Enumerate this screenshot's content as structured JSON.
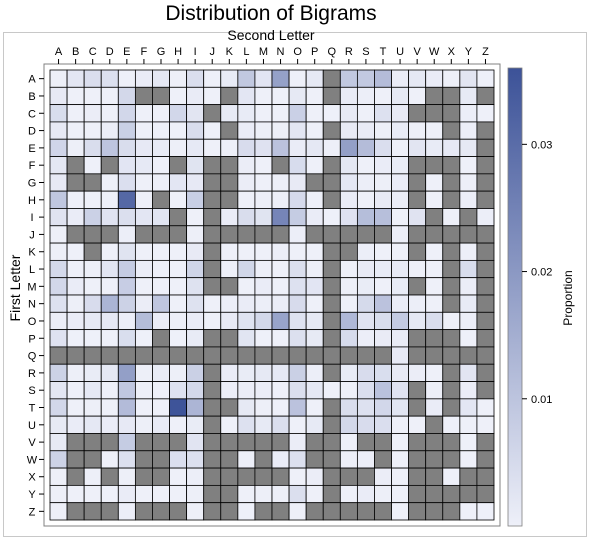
{
  "chart_data": {
    "type": "heatmap",
    "title": "Distribution of Bigrams",
    "xlabel": "Second Letter",
    "ylabel": "First Letter",
    "colorbar": {
      "label": "Proportion",
      "ticks": [
        0.01,
        0.02,
        0.03
      ],
      "range": [
        0,
        0.036
      ],
      "color_low": "#eef0f9",
      "color_high": "#3c5298"
    },
    "missing_color": "#808080",
    "x_categories": [
      "A",
      "B",
      "C",
      "D",
      "E",
      "F",
      "G",
      "H",
      "I",
      "J",
      "K",
      "L",
      "M",
      "N",
      "O",
      "P",
      "Q",
      "R",
      "S",
      "T",
      "U",
      "V",
      "W",
      "X",
      "Y",
      "Z"
    ],
    "y_categories": [
      "A",
      "B",
      "C",
      "D",
      "E",
      "F",
      "G",
      "H",
      "I",
      "J",
      "K",
      "L",
      "M",
      "N",
      "O",
      "P",
      "Q",
      "R",
      "S",
      "T",
      "U",
      "V",
      "W",
      "X",
      "Y",
      "Z"
    ],
    "values": [
      [
        0.0002,
        0.0023,
        0.004,
        0.0036,
        0.0001,
        0.0008,
        0.0018,
        0.0002,
        0.004,
        0.0001,
        0.0012,
        0.0091,
        0.0024,
        0.0181,
        0.0001,
        0.0016,
        null,
        0.0092,
        0.0088,
        0.0118,
        0.0009,
        0.0018,
        0.0008,
        0.0002,
        0.0025,
        0.0001
      ],
      [
        0.0015,
        0.0001,
        0.0001,
        0.0001,
        0.0055,
        null,
        null,
        0.0001,
        0.0011,
        0.0001,
        null,
        0.0023,
        0.0001,
        0.0001,
        0.0017,
        0.0001,
        null,
        0.0011,
        0.0004,
        0.0001,
        0.0017,
        0.0001,
        null,
        null,
        0.0014,
        null
      ],
      [
        0.0044,
        0.0001,
        0.0006,
        0.0001,
        0.0056,
        0.0001,
        0.0001,
        0.0056,
        0.0025,
        null,
        0.0014,
        0.0012,
        0.0001,
        0.0001,
        0.0072,
        0.0001,
        0.0001,
        0.0013,
        0.0001,
        0.0035,
        0.0013,
        null,
        null,
        null,
        0.0004,
        0.0001
      ],
      [
        0.0015,
        0.0001,
        0.0001,
        0.0006,
        0.0074,
        0.0001,
        0.0003,
        0.0001,
        0.0043,
        0.0001,
        null,
        0.0008,
        0.0002,
        0.0002,
        0.0022,
        0.0001,
        null,
        0.0013,
        0.0011,
        0.0002,
        0.0012,
        0.0002,
        0.0001,
        null,
        0.0005,
        null
      ],
      [
        0.0061,
        0.0003,
        0.0043,
        0.0098,
        0.0043,
        0.0015,
        0.0012,
        0.0003,
        0.0016,
        0.0001,
        0.0002,
        0.0045,
        0.0031,
        0.0104,
        0.0008,
        0.0018,
        0.0003,
        0.0185,
        0.0118,
        0.0041,
        0.0001,
        0.0025,
        0.0012,
        0.0016,
        0.0017,
        null
      ],
      [
        0.0021,
        null,
        0.0001,
        null,
        0.0024,
        0.0016,
        0.0001,
        null,
        0.0028,
        null,
        null,
        0.0006,
        0.0001,
        null,
        0.0046,
        0.0001,
        null,
        0.0021,
        0.0001,
        0.0008,
        0.001,
        null,
        null,
        null,
        0.0001,
        null
      ],
      [
        0.0015,
        null,
        null,
        0.0001,
        0.0038,
        0.0001,
        0.0003,
        0.0023,
        0.0015,
        null,
        null,
        0.0006,
        0.0001,
        0.0003,
        0.0013,
        null,
        null,
        0.002,
        0.0005,
        0.0002,
        0.0009,
        null,
        0.0001,
        null,
        0.0003,
        null
      ],
      [
        0.0093,
        0.0001,
        0.0001,
        0.0001,
        0.031,
        0.0001,
        null,
        0.0001,
        0.0076,
        null,
        null,
        0.0001,
        0.0002,
        0.0002,
        0.0049,
        0.0001,
        null,
        0.0008,
        0.0001,
        0.0013,
        0.0007,
        null,
        0.0001,
        null,
        0.0005,
        null
      ],
      [
        0.0029,
        0.0009,
        0.007,
        0.0029,
        0.0039,
        0.0023,
        0.0026,
        null,
        0.0001,
        null,
        0.0009,
        0.0043,
        0.0028,
        0.0243,
        0.0083,
        0.0009,
        0.0001,
        0.0031,
        0.0115,
        0.0112,
        0.0001,
        0.0029,
        null,
        0.0002,
        null,
        0.0004
      ],
      [
        0.0003,
        null,
        null,
        null,
        0.0005,
        null,
        null,
        null,
        0.0002,
        null,
        null,
        null,
        null,
        null,
        0.0005,
        null,
        null,
        null,
        null,
        null,
        0.0006,
        null,
        null,
        null,
        null,
        null
      ],
      [
        0.0002,
        0.0001,
        null,
        0.0001,
        0.0028,
        0.0001,
        0.0001,
        0.0001,
        0.0013,
        null,
        0.0001,
        0.0001,
        0.0001,
        0.0005,
        0.0001,
        0.0001,
        null,
        null,
        0.0005,
        0.0001,
        0.0001,
        null,
        0.0001,
        null,
        0.0002,
        null
      ],
      [
        0.0053,
        0.0001,
        0.0002,
        0.0025,
        0.0083,
        0.0007,
        0.0001,
        0.0001,
        0.0062,
        null,
        0.0003,
        0.0058,
        0.0003,
        0.0001,
        0.0039,
        0.0002,
        null,
        0.0001,
        0.0013,
        0.0012,
        0.0014,
        0.0003,
        0.0001,
        null,
        0.0044,
        null
      ],
      [
        0.0056,
        0.0009,
        0.0001,
        0.0001,
        0.0079,
        0.0001,
        0.0001,
        0.0001,
        0.0032,
        null,
        null,
        0.0001,
        0.0009,
        0.0001,
        0.0034,
        0.0024,
        null,
        0.0002,
        0.001,
        0.0001,
        0.0012,
        null,
        0.0001,
        null,
        0.0006,
        null
      ],
      [
        0.0035,
        0.0002,
        0.0045,
        0.0135,
        0.0069,
        0.0007,
        0.0095,
        0.0001,
        0.0033,
        0.0001,
        0.0005,
        0.0009,
        0.0004,
        0.0007,
        0.0047,
        0.0001,
        null,
        0.0001,
        0.0051,
        0.0104,
        0.0008,
        0.0005,
        0.0001,
        null,
        0.0012,
        null
      ],
      [
        0.0006,
        0.0009,
        0.0016,
        0.0018,
        0.0004,
        0.0117,
        0.0009,
        0.0002,
        0.0009,
        0.0001,
        0.0013,
        0.003,
        0.0054,
        0.0174,
        0.0033,
        0.0017,
        null,
        0.0128,
        0.0029,
        0.0044,
        0.0087,
        0.0019,
        0.0043,
        0.0001,
        0.0004,
        null
      ],
      [
        0.0031,
        0.0001,
        0.0001,
        0.0001,
        0.0042,
        0.0001,
        null,
        0.0001,
        0.0012,
        null,
        null,
        0.0026,
        0.0001,
        0.0001,
        0.0036,
        0.0014,
        null,
        0.0048,
        0.0005,
        0.0011,
        0.0011,
        null,
        null,
        null,
        0.0001,
        null
      ],
      [
        null,
        null,
        null,
        null,
        null,
        null,
        null,
        null,
        null,
        null,
        null,
        null,
        null,
        null,
        null,
        null,
        null,
        null,
        null,
        null,
        0.0015,
        null,
        null,
        null,
        null,
        null
      ],
      [
        0.0069,
        0.0003,
        0.001,
        0.0019,
        0.0185,
        0.0003,
        0.001,
        0.0002,
        0.0073,
        null,
        0.0009,
        0.001,
        0.0017,
        0.0016,
        0.0073,
        0.0005,
        null,
        0.0012,
        0.0045,
        0.0042,
        0.0013,
        0.0007,
        0.0001,
        null,
        0.0025,
        null
      ],
      [
        0.0022,
        0.0001,
        0.0016,
        0.0001,
        0.0093,
        0.0002,
        0.0001,
        0.0032,
        0.0055,
        null,
        0.0004,
        0.0006,
        0.0006,
        0.0001,
        0.0039,
        0.0019,
        0.0001,
        0.0001,
        0.0041,
        0.0105,
        0.0031,
        null,
        0.0002,
        null,
        0.0006,
        null
      ],
      [
        0.0056,
        0.0001,
        0.0003,
        0.0001,
        0.012,
        0.0001,
        0.0001,
        0.0356,
        0.0134,
        null,
        null,
        0.0017,
        0.0002,
        0.0001,
        0.0104,
        0.0001,
        null,
        0.0043,
        0.0034,
        0.0056,
        0.0026,
        null,
        0.0008,
        null,
        0.0023,
        0.0001
      ],
      [
        0.0014,
        0.0009,
        0.0019,
        0.0009,
        0.0015,
        0.0002,
        0.0012,
        0.0001,
        0.001,
        null,
        0.0001,
        0.0035,
        0.0014,
        0.0039,
        0.0001,
        0.0014,
        null,
        0.0054,
        0.0045,
        0.0041,
        0.0001,
        0.0001,
        null,
        0.0001,
        0.0001,
        0.0001
      ],
      [
        0.0014,
        null,
        null,
        null,
        0.0083,
        null,
        null,
        null,
        0.0027,
        null,
        null,
        null,
        null,
        null,
        0.0007,
        null,
        null,
        0.0001,
        null,
        null,
        0.0001,
        null,
        null,
        null,
        0.0001,
        null
      ],
      [
        0.0066,
        null,
        null,
        0.0001,
        0.0036,
        null,
        null,
        0.0038,
        0.0037,
        null,
        null,
        0.0002,
        null,
        0.0008,
        0.0036,
        null,
        null,
        0.0003,
        0.0004,
        null,
        0.0001,
        null,
        null,
        null,
        0.0001,
        null
      ],
      [
        0.0003,
        null,
        0.0003,
        null,
        0.0002,
        null,
        null,
        0.0001,
        0.0004,
        null,
        null,
        null,
        null,
        null,
        0.0001,
        0.0006,
        null,
        null,
        null,
        0.0006,
        0.0001,
        null,
        null,
        0.0001,
        null,
        null
      ],
      [
        0.0002,
        0.0001,
        0.0001,
        0.0001,
        0.0009,
        0.0001,
        0.0001,
        0.0001,
        0.0003,
        null,
        null,
        0.0001,
        0.0002,
        0.0002,
        0.0039,
        0.0001,
        null,
        0.0001,
        0.0009,
        0.0002,
        0.0001,
        null,
        null,
        null,
        null,
        null
      ],
      [
        0.0002,
        null,
        null,
        null,
        0.0005,
        null,
        null,
        null,
        0.0002,
        null,
        null,
        0.0001,
        null,
        null,
        0.0002,
        null,
        null,
        null,
        null,
        null,
        0.0001,
        null,
        null,
        null,
        0.0001,
        0.0001
      ]
    ]
  }
}
